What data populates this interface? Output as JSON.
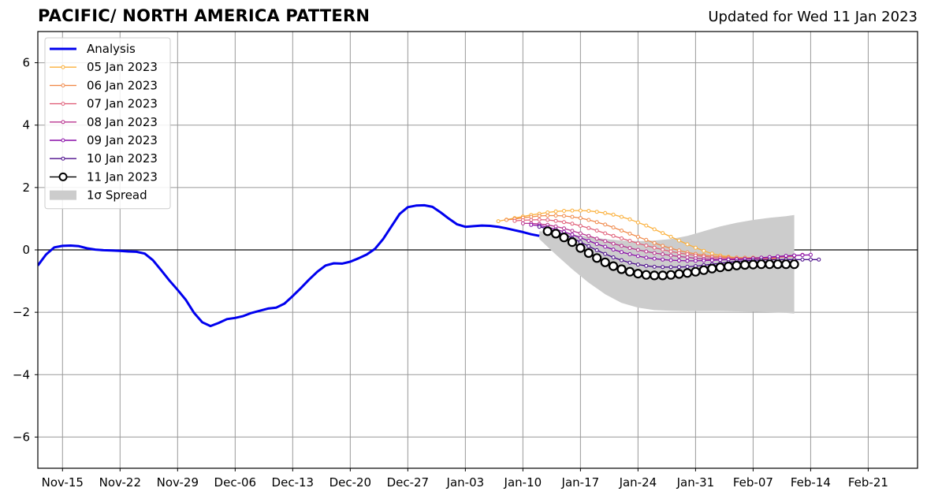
{
  "chart_data": {
    "type": "line",
    "title": "PACIFIC/ NORTH AMERICA PATTERN",
    "subtitle": "Updated for Wed 11 Jan 2023",
    "xlabel": "",
    "ylabel": "",
    "x_range": [
      "2022-11-11",
      "2023-02-26"
    ],
    "ylim": [
      -7,
      7
    ],
    "y_ticks": [
      -6,
      -4,
      -2,
      0,
      2,
      4,
      6
    ],
    "y_tick_labels": [
      "−6",
      "−4",
      "−2",
      "0",
      "2",
      "4",
      "6"
    ],
    "x_ticks": [
      "2022-11-14",
      "2022-11-21",
      "2022-11-28",
      "2022-12-05",
      "2022-12-12",
      "2022-12-19",
      "2022-12-26",
      "2023-01-02",
      "2023-01-09",
      "2023-01-16",
      "2023-01-23",
      "2023-01-30",
      "2023-02-06",
      "2023-02-13",
      "2023-02-20"
    ],
    "x_tick_labels": [
      "Nov-15",
      "Nov-22",
      "Nov-29",
      "Dec-06",
      "Dec-13",
      "Dec-20",
      "Dec-27",
      "Jan-03",
      "Jan-10",
      "Jan-17",
      "Jan-24",
      "Jan-31",
      "Feb-07",
      "Feb-14",
      "Feb-21"
    ],
    "grid": true,
    "zero_line": true,
    "legend_position": "top-left",
    "colors": {
      "analysis": "#0000ee",
      "f0105": "#fbb03b",
      "f0106": "#f08a4b",
      "f0107": "#e0607a",
      "f0108": "#b8338f",
      "f0109": "#8a0ea8",
      "f0110": "#4b0c8c",
      "f0111": "#000000",
      "spread": "#cccccc",
      "grid": "#999999"
    },
    "analysis": {
      "name": "Analysis",
      "x": [
        "2022-11-11",
        "2022-11-12",
        "2022-11-13",
        "2022-11-14",
        "2022-11-15",
        "2022-11-16",
        "2022-11-17",
        "2022-11-18",
        "2022-11-19",
        "2022-11-20",
        "2022-11-21",
        "2022-11-22",
        "2022-11-23",
        "2022-11-24",
        "2022-11-25",
        "2022-11-26",
        "2022-11-27",
        "2022-11-28",
        "2022-11-29",
        "2022-11-30",
        "2022-12-01",
        "2022-12-02",
        "2022-12-03",
        "2022-12-04",
        "2022-12-05",
        "2022-12-06",
        "2022-12-07",
        "2022-12-08",
        "2022-12-09",
        "2022-12-10",
        "2022-12-11",
        "2022-12-12",
        "2022-12-13",
        "2022-12-14",
        "2022-12-15",
        "2022-12-16",
        "2022-12-17",
        "2022-12-18",
        "2022-12-19",
        "2022-12-20",
        "2022-12-21",
        "2022-12-22",
        "2022-12-23",
        "2022-12-24",
        "2022-12-25",
        "2022-12-26",
        "2022-12-27",
        "2022-12-28",
        "2022-12-29",
        "2022-12-30",
        "2022-12-31",
        "2023-01-01",
        "2023-01-02",
        "2023-01-03",
        "2023-01-04",
        "2023-01-05",
        "2023-01-06",
        "2023-01-07",
        "2023-01-08",
        "2023-01-09",
        "2023-01-10",
        "2023-01-11"
      ],
      "y": [
        -0.5,
        -0.15,
        0.08,
        0.13,
        0.14,
        0.12,
        0.05,
        0.01,
        -0.01,
        -0.02,
        -0.03,
        -0.05,
        -0.06,
        -0.12,
        -0.33,
        -0.65,
        -0.98,
        -1.28,
        -1.6,
        -2.02,
        -2.32,
        -2.44,
        -2.34,
        -2.22,
        -2.18,
        -2.12,
        -2.02,
        -1.95,
        -1.88,
        -1.85,
        -1.72,
        -1.48,
        -1.22,
        -0.95,
        -0.7,
        -0.5,
        -0.43,
        -0.44,
        -0.38,
        -0.27,
        -0.15,
        0.03,
        0.35,
        0.75,
        1.15,
        1.37,
        1.42,
        1.43,
        1.38,
        1.2,
        1.0,
        0.82,
        0.74,
        0.76,
        0.78,
        0.77,
        0.74,
        0.69,
        0.63,
        0.57,
        0.5,
        0.45
      ]
    },
    "spread": {
      "name": "1σ Spread",
      "x": [
        "2023-01-11",
        "2023-01-13",
        "2023-01-15",
        "2023-01-17",
        "2023-01-19",
        "2023-01-21",
        "2023-01-23",
        "2023-01-25",
        "2023-01-27",
        "2023-01-29",
        "2023-01-31",
        "2023-02-02",
        "2023-02-04",
        "2023-02-06",
        "2023-02-08",
        "2023-02-10",
        "2023-02-11"
      ],
      "upper": [
        0.6,
        0.55,
        0.5,
        0.42,
        0.35,
        0.3,
        0.28,
        0.3,
        0.35,
        0.45,
        0.6,
        0.75,
        0.87,
        0.96,
        1.03,
        1.08,
        1.12
      ],
      "lower": [
        0.35,
        -0.15,
        -0.62,
        -1.05,
        -1.42,
        -1.7,
        -1.85,
        -1.93,
        -1.95,
        -1.96,
        -1.96,
        -1.96,
        -1.97,
        -1.98,
        -2.0,
        -2.02,
        -2.04
      ]
    },
    "series": [
      {
        "name": "05 Jan 2023",
        "color_key": "f0105",
        "x_start": "2023-01-06",
        "y": [
          0.92,
          0.97,
          1.02,
          1.07,
          1.12,
          1.16,
          1.2,
          1.23,
          1.25,
          1.26,
          1.26,
          1.25,
          1.22,
          1.18,
          1.13,
          1.06,
          0.98,
          0.88,
          0.78,
          0.66,
          0.54,
          0.42,
          0.3,
          0.18,
          0.07,
          -0.03,
          -0.12,
          -0.18,
          -0.22,
          -0.25,
          -0.27,
          -0.28,
          -0.28,
          -0.28,
          -0.27
        ]
      },
      {
        "name": "06 Jan 2023",
        "color_key": "f0106",
        "x_start": "2023-01-07",
        "y": [
          0.96,
          0.99,
          1.03,
          1.06,
          1.09,
          1.1,
          1.1,
          1.09,
          1.06,
          1.02,
          0.96,
          0.89,
          0.81,
          0.72,
          0.62,
          0.52,
          0.42,
          0.32,
          0.22,
          0.13,
          0.05,
          -0.02,
          -0.08,
          -0.13,
          -0.17,
          -0.2,
          -0.22,
          -0.24,
          -0.25,
          -0.25,
          -0.25,
          -0.25,
          -0.24,
          -0.23,
          -0.22
        ]
      },
      {
        "name": "07 Jan 2023",
        "color_key": "f0107",
        "x_start": "2023-01-08",
        "y": [
          0.93,
          0.95,
          0.96,
          0.97,
          0.96,
          0.93,
          0.89,
          0.84,
          0.77,
          0.7,
          0.62,
          0.53,
          0.45,
          0.37,
          0.29,
          0.21,
          0.14,
          0.07,
          0.01,
          -0.05,
          -0.1,
          -0.14,
          -0.18,
          -0.21,
          -0.24,
          -0.26,
          -0.27,
          -0.28,
          -0.28,
          -0.28,
          -0.27,
          -0.26,
          -0.24,
          -0.22,
          -0.2
        ]
      },
      {
        "name": "08 Jan 2023",
        "color_key": "f0108",
        "x_start": "2023-01-09",
        "y": [
          0.85,
          0.85,
          0.83,
          0.8,
          0.75,
          0.69,
          0.61,
          0.53,
          0.45,
          0.36,
          0.28,
          0.2,
          0.13,
          0.06,
          0.0,
          -0.05,
          -0.1,
          -0.14,
          -0.18,
          -0.21,
          -0.24,
          -0.27,
          -0.29,
          -0.3,
          -0.31,
          -0.31,
          -0.31,
          -0.3,
          -0.28,
          -0.26,
          -0.24,
          -0.22,
          -0.2,
          -0.18,
          -0.16
        ]
      },
      {
        "name": "09 Jan 2023",
        "color_key": "f0109",
        "x_start": "2023-01-10",
        "y": [
          0.8,
          0.78,
          0.73,
          0.66,
          0.58,
          0.49,
          0.39,
          0.29,
          0.19,
          0.1,
          0.01,
          -0.07,
          -0.14,
          -0.2,
          -0.25,
          -0.28,
          -0.31,
          -0.33,
          -0.34,
          -0.35,
          -0.35,
          -0.34,
          -0.33,
          -0.32,
          -0.31,
          -0.3,
          -0.29,
          -0.27,
          -0.25,
          -0.23,
          -0.21,
          -0.19,
          -0.18,
          -0.17,
          -0.16
        ]
      },
      {
        "name": "10 Jan 2023",
        "color_key": "f0110",
        "x_start": "2023-01-11",
        "y": [
          0.74,
          0.68,
          0.6,
          0.5,
          0.38,
          0.25,
          0.12,
          -0.01,
          -0.13,
          -0.24,
          -0.33,
          -0.41,
          -0.47,
          -0.51,
          -0.54,
          -0.55,
          -0.55,
          -0.55,
          -0.54,
          -0.52,
          -0.49,
          -0.46,
          -0.43,
          -0.4,
          -0.37,
          -0.35,
          -0.33,
          -0.32,
          -0.31,
          -0.31,
          -0.31,
          -0.31,
          -0.31,
          -0.31,
          -0.31
        ]
      },
      {
        "name": "11 Jan 2023",
        "color_key": "f0111",
        "x_start": "2023-01-12",
        "y": [
          0.6,
          0.52,
          0.4,
          0.25,
          0.06,
          -0.1,
          -0.26,
          -0.4,
          -0.52,
          -0.62,
          -0.7,
          -0.76,
          -0.8,
          -0.82,
          -0.82,
          -0.8,
          -0.77,
          -0.74,
          -0.7,
          -0.65,
          -0.6,
          -0.56,
          -0.53,
          -0.5,
          -0.48,
          -0.47,
          -0.46,
          -0.46,
          -0.46,
          -0.46,
          -0.46
        ]
      }
    ]
  }
}
